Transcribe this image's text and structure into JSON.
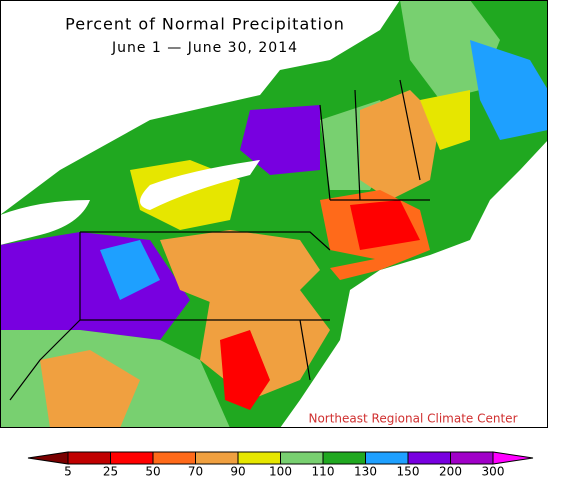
{
  "title": "Percent of Normal Precipitation",
  "subtitle": "June 1 — June 30, 2014",
  "credit": "Northeast Regional Climate Center",
  "legend": {
    "ticks": [
      5,
      25,
      50,
      70,
      90,
      100,
      110,
      130,
      150,
      200,
      300
    ],
    "colors": [
      "#7a0000",
      "#c00000",
      "#ff0000",
      "#ff6a1a",
      "#f0a040",
      "#e6e600",
      "#78d070",
      "#20a820",
      "#1ea0ff",
      "#7800e0",
      "#a000c8",
      "#ff00ff"
    ]
  }
}
